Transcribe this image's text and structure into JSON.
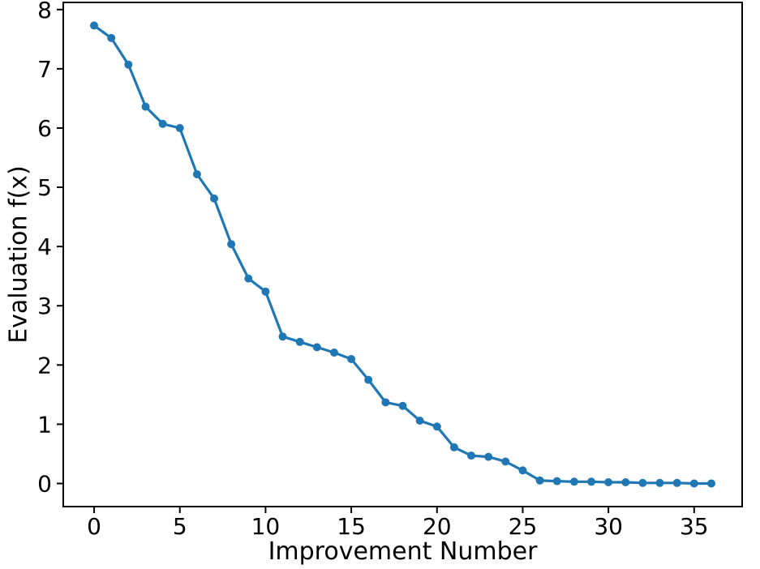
{
  "figure": {
    "background": "#ffffff"
  },
  "chart_data": {
    "type": "line",
    "title": "",
    "xlabel": "Improvement Number",
    "ylabel": "Evaluation f(x)",
    "x": [
      0,
      1,
      2,
      3,
      4,
      5,
      6,
      7,
      8,
      9,
      10,
      11,
      12,
      13,
      14,
      15,
      16,
      17,
      18,
      19,
      20,
      21,
      22,
      23,
      24,
      25,
      26,
      27,
      28,
      29,
      30,
      31,
      32,
      33,
      34,
      35,
      36
    ],
    "y": [
      7.73,
      7.52,
      7.07,
      6.36,
      6.07,
      6.0,
      5.22,
      4.81,
      4.04,
      3.46,
      3.24,
      2.48,
      2.39,
      2.3,
      2.21,
      2.1,
      1.75,
      1.37,
      1.31,
      1.06,
      0.96,
      0.61,
      0.47,
      0.45,
      0.37,
      0.22,
      0.05,
      0.04,
      0.03,
      0.03,
      0.02,
      0.02,
      0.01,
      0.01,
      0.01,
      0.0,
      0.0
    ],
    "xticks": [
      0,
      5,
      10,
      15,
      20,
      25,
      30,
      35
    ],
    "yticks": [
      0,
      1,
      2,
      3,
      4,
      5,
      6,
      7,
      8
    ],
    "xlim": [
      -1.8,
      37.8
    ],
    "ylim": [
      -0.39,
      8.12
    ],
    "grid": false,
    "legend": false,
    "marker": "circle",
    "line_color": "#1f77b4",
    "axis_color": "#000000"
  }
}
